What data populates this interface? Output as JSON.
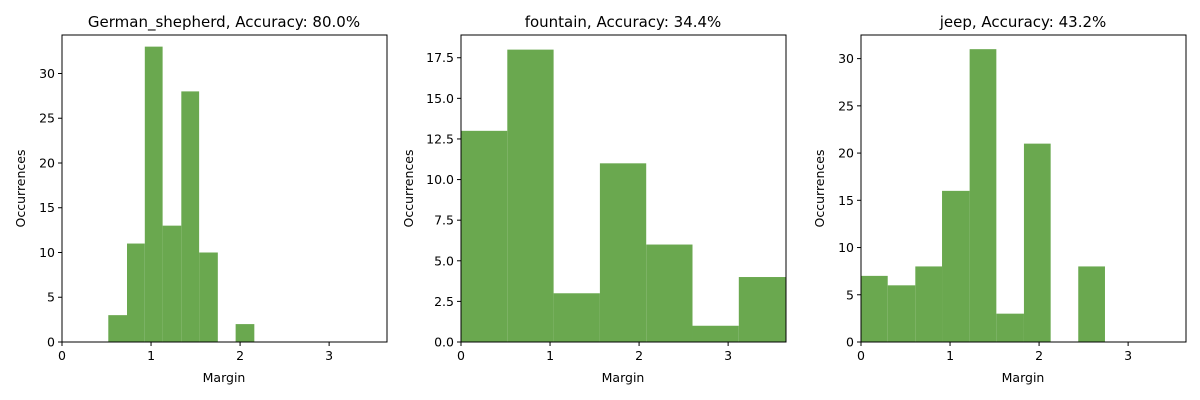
{
  "bar_color": "#6aa84f",
  "chart_data": [
    {
      "type": "bar",
      "title": "German_shepherd, Accuracy: 80.0%",
      "xlabel": "Margin",
      "ylabel": "Occurrences",
      "xlim": [
        0,
        3.65
      ],
      "ylim": [
        0,
        34.3
      ],
      "xticks": [
        0,
        1,
        2,
        3
      ],
      "yticks": [
        0,
        5,
        10,
        15,
        20,
        25,
        30
      ],
      "bins": [
        {
          "x0": 0.52,
          "x1": 0.73,
          "value": 3
        },
        {
          "x0": 0.73,
          "x1": 0.93,
          "value": 11
        },
        {
          "x0": 0.93,
          "x1": 1.13,
          "value": 33
        },
        {
          "x0": 1.13,
          "x1": 1.34,
          "value": 13
        },
        {
          "x0": 1.34,
          "x1": 1.54,
          "value": 28
        },
        {
          "x0": 1.54,
          "x1": 1.75,
          "value": 10
        },
        {
          "x0": 1.95,
          "x1": 2.16,
          "value": 2
        }
      ]
    },
    {
      "type": "bar",
      "title": "fountain, Accuracy: 34.4%",
      "xlabel": "Margin",
      "ylabel": "Occurrences",
      "xlim": [
        0,
        3.65
      ],
      "ylim": [
        0,
        18.9
      ],
      "xticks": [
        0,
        1,
        2,
        3
      ],
      "yticks": [
        "0.0",
        "2.5",
        "5.0",
        "7.5",
        "10.0",
        "12.5",
        "15.0",
        "17.5"
      ],
      "bins": [
        {
          "x0": 0.0,
          "x1": 0.52,
          "value": 13
        },
        {
          "x0": 0.52,
          "x1": 1.04,
          "value": 18
        },
        {
          "x0": 1.04,
          "x1": 1.56,
          "value": 3
        },
        {
          "x0": 1.56,
          "x1": 2.08,
          "value": 11
        },
        {
          "x0": 2.08,
          "x1": 2.6,
          "value": 6
        },
        {
          "x0": 2.6,
          "x1": 3.12,
          "value": 1
        },
        {
          "x0": 3.12,
          "x1": 3.65,
          "value": 4
        }
      ]
    },
    {
      "type": "bar",
      "title": "jeep, Accuracy: 43.2%",
      "xlabel": "Margin",
      "ylabel": "Occurrences",
      "xlim": [
        0,
        3.65
      ],
      "ylim": [
        0,
        32.5
      ],
      "xticks": [
        0,
        1,
        2,
        3
      ],
      "yticks": [
        0,
        5,
        10,
        15,
        20,
        25,
        30
      ],
      "bins": [
        {
          "x0": 0.0,
          "x1": 0.3,
          "value": 7
        },
        {
          "x0": 0.3,
          "x1": 0.61,
          "value": 6
        },
        {
          "x0": 0.61,
          "x1": 0.91,
          "value": 8
        },
        {
          "x0": 0.91,
          "x1": 1.22,
          "value": 16
        },
        {
          "x0": 1.22,
          "x1": 1.52,
          "value": 31
        },
        {
          "x0": 1.52,
          "x1": 1.83,
          "value": 3
        },
        {
          "x0": 1.83,
          "x1": 2.13,
          "value": 21
        },
        {
          "x0": 2.44,
          "x1": 2.74,
          "value": 8
        }
      ]
    }
  ]
}
